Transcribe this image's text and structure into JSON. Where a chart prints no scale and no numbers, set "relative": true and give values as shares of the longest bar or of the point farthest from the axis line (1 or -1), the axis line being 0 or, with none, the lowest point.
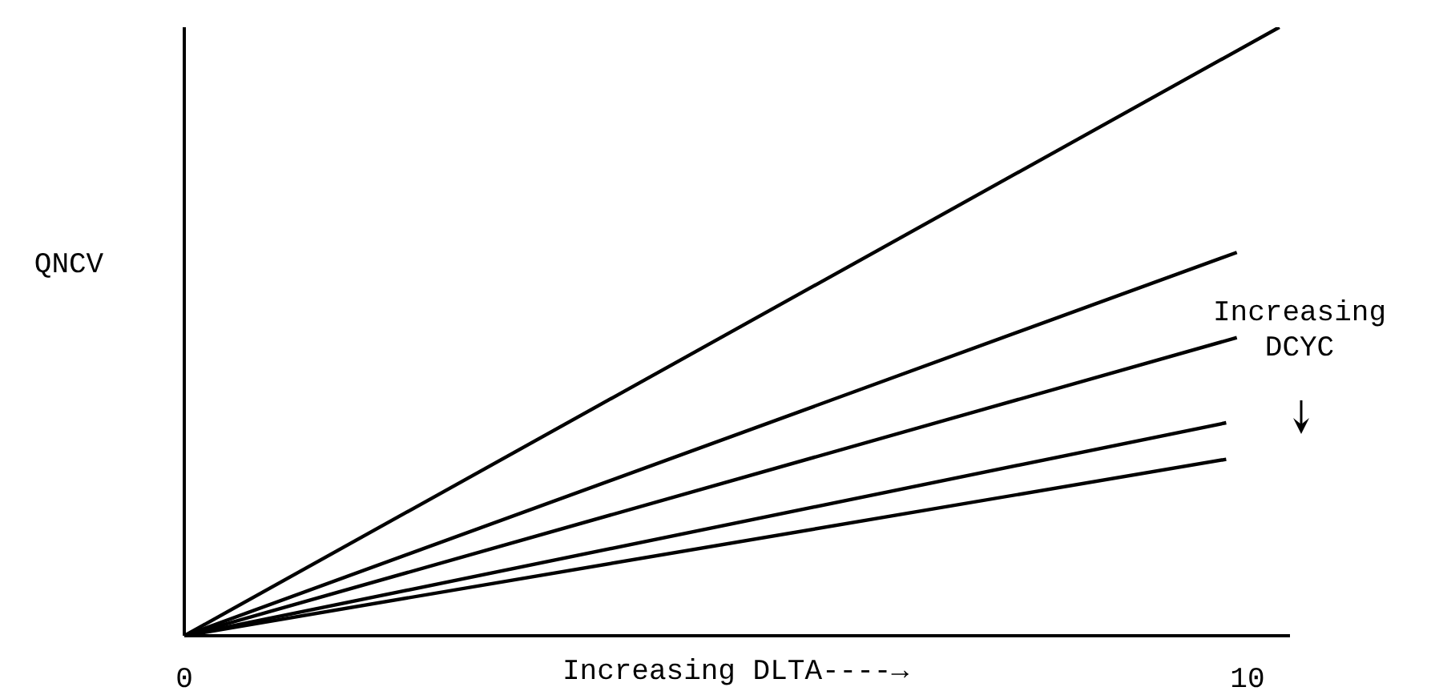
{
  "chart_data": {
    "type": "line",
    "relative": true,
    "xlabel": "Increasing DLTA----→",
    "ylabel": "QNCV",
    "xlim": [
      0,
      10.4
    ],
    "xticks": [
      0,
      10
    ],
    "marker": "none",
    "line_style": "solid",
    "annotations": [
      "Increasing DCYC"
    ],
    "series": [
      {
        "color": "#000000",
        "x": [
          0,
          10.3
        ],
        "values": [
          0,
          1
        ]
      },
      {
        "color": "#000000",
        "x": [
          0,
          9.9
        ],
        "values": [
          0,
          0.63
        ]
      },
      {
        "color": "#000000",
        "x": [
          0,
          9.9
        ],
        "values": [
          0,
          0.49
        ]
      },
      {
        "color": "#000000",
        "x": [
          0,
          9.8
        ],
        "values": [
          0,
          0.35
        ]
      },
      {
        "color": "#000000",
        "x": [
          0,
          9.8
        ],
        "values": [
          0,
          0.29
        ]
      }
    ]
  }
}
